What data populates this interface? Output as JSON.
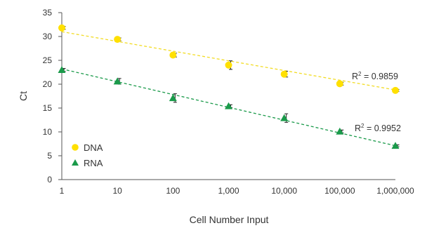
{
  "chart_data": {
    "type": "scatter",
    "title": "",
    "xlabel": "Cell Number Input",
    "ylabel": "Ct",
    "x_scale": "log",
    "x_categories": [
      "1",
      "10",
      "100",
      "1,000",
      "10,000",
      "100,000",
      "1,000,000"
    ],
    "x_values": [
      1,
      10,
      100,
      1000,
      10000,
      100000,
      1000000
    ],
    "ylim": [
      0,
      35
    ],
    "y_ticks": [
      "0",
      "5",
      "10",
      "15",
      "20",
      "25",
      "30",
      "35"
    ],
    "grid": false,
    "legend_position": "bottom-left",
    "series": [
      {
        "name": "DNA",
        "marker": "circle",
        "color": "#ffe000",
        "trendline_color": "#f2dc24",
        "values": [
          31.8,
          29.4,
          26.1,
          24.0,
          22.1,
          20.1,
          18.7
        ],
        "error": [
          0.3,
          0.3,
          0.4,
          0.9,
          0.6,
          0.3,
          0.2
        ],
        "trendline": {
          "start": 31.0,
          "end": 18.8
        },
        "r2_prefix": "R",
        "r2_sup": "2",
        "r2_value": " = 0.9859"
      },
      {
        "name": "RNA",
        "marker": "triangle",
        "color": "#1a9a4a",
        "trendline_color": "#1a9a4a",
        "values": [
          23.0,
          20.6,
          17.1,
          15.4,
          12.9,
          10.1,
          7.1
        ],
        "error": [
          0.3,
          0.6,
          0.9,
          0.3,
          0.9,
          0.3,
          0.2
        ],
        "trendline": {
          "start": 23.2,
          "end": 7.1
        },
        "r2_prefix": "R",
        "r2_sup": "2",
        "r2_value": " = 0.9952"
      }
    ]
  }
}
